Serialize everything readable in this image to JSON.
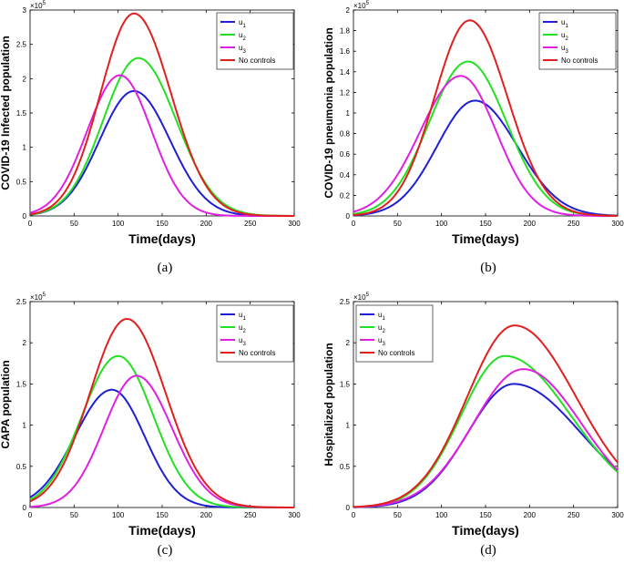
{
  "colors": {
    "u1": "#1f1fd6",
    "u2": "#22e022",
    "u3": "#e020e0",
    "none": "#e01f1f",
    "axis": "#000000",
    "caption": "#000000"
  },
  "chart_data": [
    {
      "type": "line",
      "panel_label": "(a)",
      "ylabel": "COVID-19 Infected population",
      "xlabel": "Time(days)",
      "exponent_label": "×10",
      "exponent_power": "5",
      "xlim": [
        0,
        300
      ],
      "ylim": [
        0,
        3
      ],
      "xticks": [
        0,
        50,
        100,
        150,
        200,
        250,
        300
      ],
      "yticks": [
        0,
        0.5,
        1,
        1.5,
        2,
        2.5,
        3
      ],
      "ytick_labels": [
        "0",
        "0.5",
        "1",
        "1.5",
        "2",
        "2.5",
        "3"
      ],
      "legend_position": "top-right",
      "series": [
        {
          "name": "u",
          "subscript": "1",
          "color_key": "u1",
          "model": {
            "peak": 1.82,
            "t": 118,
            "s1": 39,
            "s2": 41
          }
        },
        {
          "name": "u",
          "subscript": "2",
          "color_key": "u2",
          "model": {
            "peak": 2.3,
            "t": 123,
            "s1": 40,
            "s2": 43
          }
        },
        {
          "name": "u",
          "subscript": "3",
          "color_key": "u3",
          "model": {
            "peak": 2.05,
            "t": 102,
            "s1": 37,
            "s2": 36
          }
        },
        {
          "name": "No controls",
          "subscript": "",
          "color_key": "none",
          "model": {
            "peak": 2.95,
            "t": 118,
            "s1": 38,
            "s2": 42
          }
        }
      ]
    },
    {
      "type": "line",
      "panel_label": "(b)",
      "ylabel": "COVID-19 pneumonia population",
      "xlabel": "Time(days)",
      "exponent_label": "×10",
      "exponent_power": "5",
      "xlim": [
        0,
        300
      ],
      "ylim": [
        0,
        2
      ],
      "xticks": [
        0,
        50,
        100,
        150,
        200,
        250,
        300
      ],
      "yticks": [
        0,
        0.2,
        0.4,
        0.6,
        0.8,
        1,
        1.2,
        1.4,
        1.6,
        1.8,
        2
      ],
      "ytick_labels": [
        "0",
        "0.2",
        "0.4",
        "0.6",
        "0.8",
        "1",
        "1.2",
        "1.4",
        "1.6",
        "1.8",
        "2"
      ],
      "legend_position": "top-right",
      "series": [
        {
          "name": "u",
          "subscript": "1",
          "color_key": "u1",
          "model": {
            "peak": 1.12,
            "t": 138,
            "s1": 43,
            "s2": 48
          }
        },
        {
          "name": "u",
          "subscript": "2",
          "color_key": "u2",
          "model": {
            "peak": 1.5,
            "t": 130,
            "s1": 44,
            "s2": 44
          }
        },
        {
          "name": "u",
          "subscript": "3",
          "color_key": "u3",
          "model": {
            "peak": 1.36,
            "t": 122,
            "s1": 46,
            "s2": 40
          }
        },
        {
          "name": "No controls",
          "subscript": "",
          "color_key": "none",
          "model": {
            "peak": 1.9,
            "t": 132,
            "s1": 40,
            "s2": 43
          }
        }
      ]
    },
    {
      "type": "line",
      "panel_label": "(c)",
      "ylabel": "CAPA  population",
      "xlabel": "Time(days)",
      "exponent_label": "×10",
      "exponent_power": "5",
      "xlim": [
        0,
        300
      ],
      "ylim": [
        0,
        2.5
      ],
      "xticks": [
        0,
        50,
        100,
        150,
        200,
        250,
        300
      ],
      "yticks": [
        0,
        0.5,
        1,
        1.5,
        2,
        2.5
      ],
      "ytick_labels": [
        "0",
        "0.5",
        "1",
        "1.5",
        "2",
        "2.5"
      ],
      "legend_position": "top-right",
      "series": [
        {
          "name": "u",
          "subscript": "1",
          "color_key": "u1",
          "model": {
            "peak": 1.43,
            "t": 93,
            "s1": 42,
            "s2": 37
          }
        },
        {
          "name": "u",
          "subscript": "2",
          "color_key": "u2",
          "model": {
            "peak": 1.84,
            "t": 100,
            "s1": 41,
            "s2": 40
          }
        },
        {
          "name": "u",
          "subscript": "3",
          "color_key": "u3",
          "model": {
            "peak": 1.6,
            "t": 121,
            "s1": 37,
            "s2": 40
          }
        },
        {
          "name": "No controls",
          "subscript": "",
          "color_key": "none",
          "model": {
            "peak": 2.29,
            "t": 110,
            "s1": 42,
            "s2": 44
          }
        }
      ]
    },
    {
      "type": "line",
      "panel_label": "(d)",
      "ylabel": "Hospitalized  population",
      "xlabel": "Time(days)",
      "exponent_label": "×10",
      "exponent_power": "5",
      "xlim": [
        0,
        300
      ],
      "ylim": [
        0,
        2.5
      ],
      "xticks": [
        0,
        50,
        100,
        150,
        200,
        250,
        300
      ],
      "yticks": [
        0,
        0.5,
        1,
        1.5,
        2,
        2.5
      ],
      "ytick_labels": [
        "0",
        "0.5",
        "1",
        "1.5",
        "2",
        "2.5"
      ],
      "legend_position": "top-left",
      "series": [
        {
          "name": "u",
          "subscript": "1",
          "color_key": "u1",
          "model": {
            "peak": 1.5,
            "t": 182,
            "s1": 52,
            "s2": 76
          }
        },
        {
          "name": "u",
          "subscript": "2",
          "color_key": "u2",
          "model": {
            "peak": 1.84,
            "t": 172,
            "s1": 50,
            "s2": 75
          }
        },
        {
          "name": "u",
          "subscript": "3",
          "color_key": "u3",
          "model": {
            "peak": 1.68,
            "t": 193,
            "s1": 57,
            "s2": 66
          }
        },
        {
          "name": "No controls",
          "subscript": "",
          "color_key": "none",
          "model": {
            "peak": 2.21,
            "t": 183,
            "s1": 54,
            "s2": 70
          }
        }
      ]
    }
  ]
}
